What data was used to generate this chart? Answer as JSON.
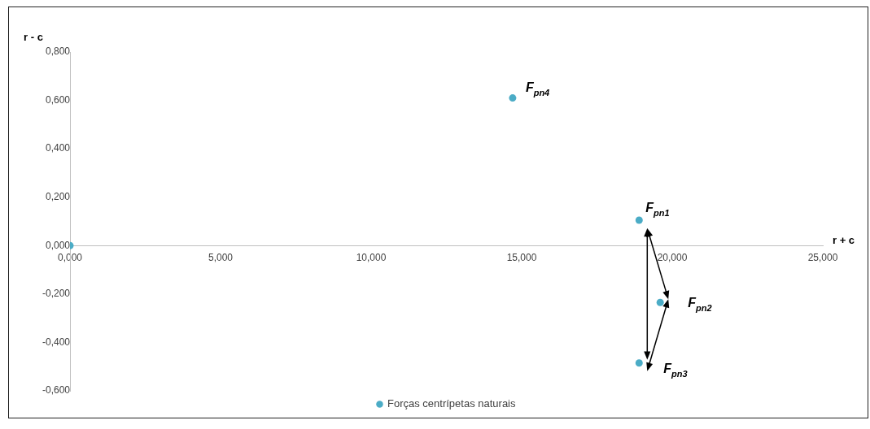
{
  "chart_data": {
    "type": "scatter",
    "xlabel": "r + c",
    "ylabel": "r - c",
    "x": [
      0,
      14.7,
      18.9,
      19.6,
      18.9
    ],
    "series": [
      {
        "name": "Forças centrípetas naturais",
        "color": "#4bacc6",
        "values": [
          0,
          0.61,
          0.105,
          -0.235,
          -0.485
        ]
      }
    ],
    "xlim": [
      0,
      25
    ],
    "xticks": [
      {
        "value": 0,
        "label": "0,000"
      },
      {
        "value": 5,
        "label": "5,000"
      },
      {
        "value": 10,
        "label": "10,000"
      },
      {
        "value": 15,
        "label": "15,000"
      },
      {
        "value": 20,
        "label": "20,000"
      },
      {
        "value": 25,
        "label": "25,000"
      }
    ],
    "ylim": [
      -0.6,
      0.8
    ],
    "yticks": [
      {
        "value": -0.6,
        "label": "-0,600"
      },
      {
        "value": -0.4,
        "label": "-0,400"
      },
      {
        "value": -0.2,
        "label": "-0,200"
      },
      {
        "value": 0,
        "label": "0,000"
      },
      {
        "value": 0.2,
        "label": "0,200"
      },
      {
        "value": 0.4,
        "label": "0,400"
      },
      {
        "value": 0.6,
        "label": "0,600"
      },
      {
        "value": 0.8,
        "label": "0,800"
      }
    ],
    "annotations": [
      {
        "text": "F$_{pn4}$",
        "x": 14.7,
        "y": 0.61
      },
      {
        "text": "F$_{pn1}$",
        "x": 18.9,
        "y": 0.105
      },
      {
        "text": "F$_{pn2}$",
        "x": 19.6,
        "y": -0.235
      },
      {
        "text": "F$_{pn3}$",
        "x": 18.9,
        "y": -0.485
      }
    ],
    "grid": false,
    "legend": "bottom",
    "marker": "circle"
  }
}
